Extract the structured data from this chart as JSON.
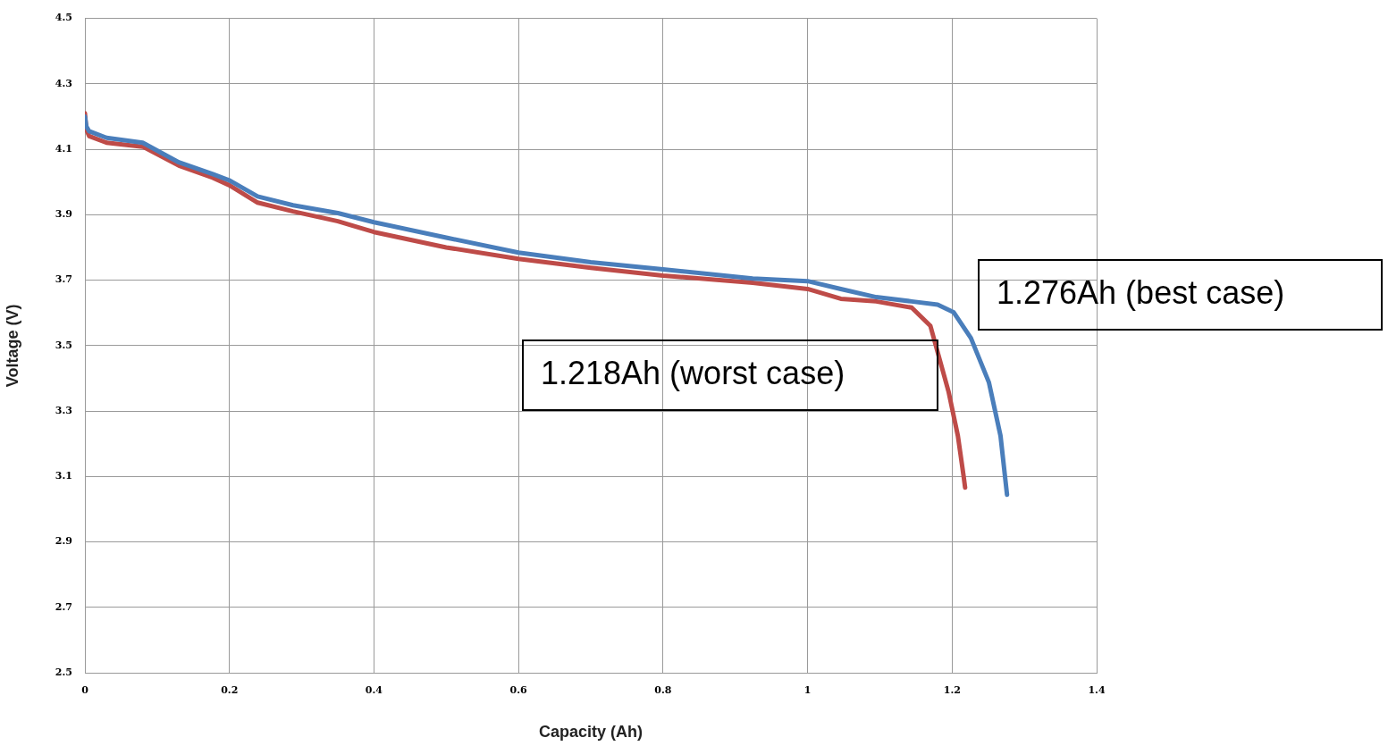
{
  "chart_data": {
    "type": "line",
    "xlabel": "Capacity (Ah)",
    "ylabel": "Voltage (V)",
    "xlim": [
      0,
      1.4
    ],
    "xticks": [
      0,
      0.2,
      0.4,
      0.6,
      0.8,
      1,
      1.2,
      1.4
    ],
    "ylim": [
      2.5,
      4.5
    ],
    "yticks": [
      2.5,
      2.7,
      2.9,
      3.1,
      3.3,
      3.5,
      3.7,
      3.9,
      4.1,
      4.3,
      4.5
    ],
    "grid": true,
    "legend": false,
    "marker": "none",
    "line_style": "solid",
    "annotations": [
      "1.276Ah (best case)",
      "1.218Ah (worst case)"
    ],
    "series": [
      {
        "color": "#4a7ebb",
        "x": [
          0,
          0.002,
          0.006,
          0.03,
          0.08,
          0.13,
          0.177,
          0.2,
          0.239,
          0.288,
          0.35,
          0.4,
          0.5,
          0.6,
          0.7,
          0.8,
          0.924,
          1.0,
          1.046,
          1.095,
          1.144,
          1.18,
          1.202,
          1.226,
          1.251,
          1.267,
          1.276
        ],
        "values": [
          4.2,
          4.17,
          4.155,
          4.135,
          4.12,
          4.06,
          4.024,
          4.005,
          3.956,
          3.929,
          3.905,
          3.877,
          3.83,
          3.784,
          3.755,
          3.733,
          3.705,
          3.697,
          3.673,
          3.648,
          3.635,
          3.625,
          3.602,
          3.523,
          3.387,
          3.224,
          3.044
        ]
      },
      {
        "color": "#be4b48",
        "x": [
          0,
          0.002,
          0.006,
          0.03,
          0.08,
          0.13,
          0.177,
          0.2,
          0.239,
          0.288,
          0.35,
          0.4,
          0.5,
          0.6,
          0.7,
          0.8,
          0.924,
          1.0,
          1.046,
          1.095,
          1.144,
          1.17,
          1.195,
          1.208,
          1.216,
          1.218
        ],
        "values": [
          4.21,
          4.16,
          4.14,
          4.12,
          4.108,
          4.05,
          4.013,
          3.99,
          3.937,
          3.91,
          3.88,
          3.847,
          3.8,
          3.765,
          3.738,
          3.714,
          3.692,
          3.673,
          3.643,
          3.635,
          3.616,
          3.56,
          3.36,
          3.224,
          3.1,
          3.066
        ]
      }
    ]
  }
}
